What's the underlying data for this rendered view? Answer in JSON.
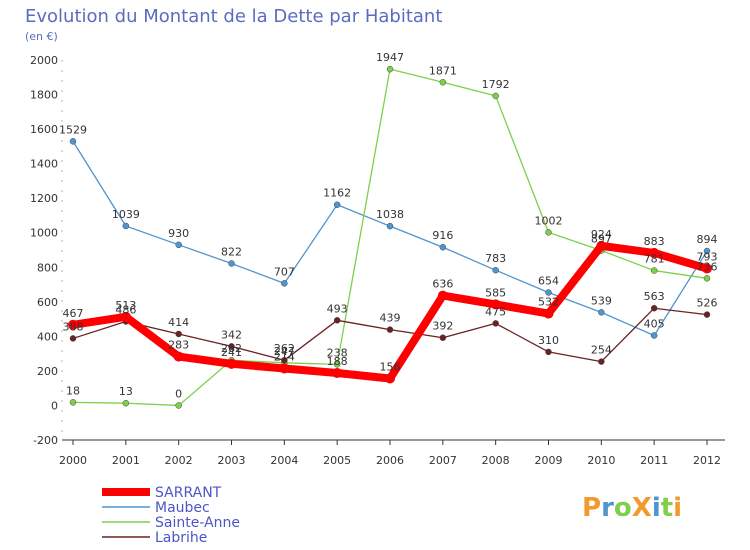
{
  "chart_data": {
    "type": "line",
    "title": "Evolution du Montant de la Dette par Habitant",
    "subtitle": "(en €)",
    "xlabel": "",
    "ylabel": "",
    "x": [
      "2000",
      "2001",
      "2002",
      "2003",
      "2004",
      "2005",
      "2006",
      "2007",
      "2008",
      "2009",
      "2010",
      "2011",
      "2012"
    ],
    "ylim": [
      -200,
      2000
    ],
    "yticks": [
      "-200",
      "0",
      "200",
      "400",
      "600",
      "800",
      "1000",
      "1200",
      "1400",
      "1600",
      "1800",
      "2000"
    ],
    "grid": false,
    "legend_position": "bottom-left",
    "series": [
      {
        "name": "SARRANT",
        "color": "#ff0000",
        "values": [
          467,
          513,
          283,
          241,
          214,
          188,
          156,
          636,
          585,
          532,
          924,
          883,
          793
        ]
      },
      {
        "name": "Maubec",
        "color": "#4f95d0",
        "values": [
          1529,
          1039,
          930,
          822,
          707,
          1162,
          1038,
          916,
          783,
          654,
          539,
          405,
          894
        ]
      },
      {
        "name": "Sainte-Anne",
        "color": "#7ed04a",
        "values": [
          18,
          13,
          0,
          262,
          247,
          238,
          1947,
          1871,
          1792,
          1002,
          897,
          781,
          736
        ]
      },
      {
        "name": "Labrihe",
        "color": "#6b2222",
        "values": [
          388,
          486,
          414,
          342,
          262,
          493,
          439,
          392,
          475,
          310,
          254,
          563,
          526
        ]
      }
    ]
  },
  "branding": {
    "logo_text": "ProXiti"
  }
}
